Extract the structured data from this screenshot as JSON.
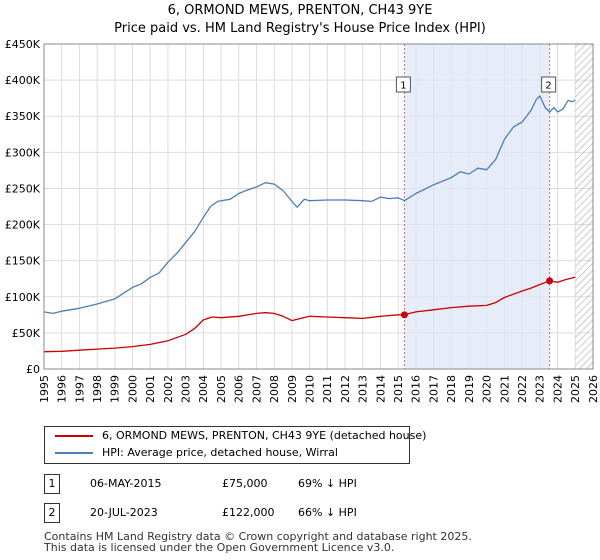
{
  "title": "6, ORMOND MEWS, PRENTON, CH43 9YE",
  "subtitle": "Price paid vs. HM Land Registry's House Price Index (HPI)",
  "chart_data": {
    "type": "line",
    "xlim": [
      1995,
      2026
    ],
    "ylim": [
      0,
      450000
    ],
    "x_ticks": [
      1995,
      1996,
      1997,
      1998,
      1999,
      2000,
      2001,
      2002,
      2003,
      2004,
      2005,
      2006,
      2007,
      2008,
      2009,
      2010,
      2011,
      2012,
      2013,
      2014,
      2015,
      2016,
      2017,
      2018,
      2019,
      2020,
      2021,
      2022,
      2023,
      2024,
      2025,
      2026
    ],
    "y_ticks": [
      {
        "value": 0,
        "label": "£0"
      },
      {
        "value": 50000,
        "label": "£50K"
      },
      {
        "value": 100000,
        "label": "£100K"
      },
      {
        "value": 150000,
        "label": "£150K"
      },
      {
        "value": 200000,
        "label": "£200K"
      },
      {
        "value": 250000,
        "label": "£250K"
      },
      {
        "value": 300000,
        "label": "£300K"
      },
      {
        "value": 350000,
        "label": "£350K"
      },
      {
        "value": 400000,
        "label": "£400K"
      },
      {
        "value": 450000,
        "label": "£450K"
      }
    ],
    "shaded_region": {
      "from": 2015.35,
      "to": 2023.55
    },
    "future_hatch_from": 2025.0,
    "series": [
      {
        "name": "6, ORMOND MEWS, PRENTON, CH43 9YE (detached house)",
        "color": "#cc0000",
        "x": [
          1995.0,
          1996.0,
          1997.0,
          1998.0,
          1999.0,
          2000.0,
          2001.0,
          2002.0,
          2003.0,
          2003.5,
          2004.0,
          2004.5,
          2005.0,
          2006.0,
          2007.0,
          2007.5,
          2008.0,
          2008.5,
          2009.0,
          2009.5,
          2010.0,
          2011.0,
          2012.0,
          2013.0,
          2014.0,
          2015.0,
          2015.35,
          2016.0,
          2017.0,
          2018.0,
          2019.0,
          2020.0,
          2020.5,
          2021.0,
          2022.0,
          2022.5,
          2023.0,
          2023.55,
          2024.0,
          2024.5,
          2025.0
        ],
        "y": [
          24000,
          24500,
          26000,
          27500,
          29000,
          31000,
          34000,
          39000,
          48000,
          56000,
          68000,
          72000,
          71000,
          73000,
          77000,
          78000,
          77000,
          73000,
          67000,
          70000,
          73000,
          72000,
          71000,
          70000,
          73000,
          75000,
          75000,
          79000,
          82000,
          85000,
          87000,
          88000,
          92000,
          99000,
          108000,
          112000,
          117000,
          122000,
          120000,
          124000,
          127000
        ]
      },
      {
        "name": "HPI: Average price, detached house, Wirral",
        "color": "#4a7ebb",
        "x": [
          1995.0,
          1995.5,
          1996.0,
          1997.0,
          1998.0,
          1999.0,
          2000.0,
          2000.5,
          2001.0,
          2001.5,
          2002.0,
          2002.5,
          2003.0,
          2003.5,
          2004.0,
          2004.4,
          2004.8,
          2005.5,
          2006.0,
          2006.5,
          2007.0,
          2007.5,
          2008.0,
          2008.5,
          2009.0,
          2009.3,
          2009.7,
          2010.0,
          2011.0,
          2012.0,
          2013.0,
          2013.5,
          2014.0,
          2014.5,
          2015.0,
          2015.35,
          2016.0,
          2017.0,
          2018.0,
          2018.5,
          2019.0,
          2019.5,
          2020.0,
          2020.5,
          2021.0,
          2021.5,
          2022.0,
          2022.5,
          2022.8,
          2023.0,
          2023.3,
          2023.55,
          2023.8,
          2024.0,
          2024.3,
          2024.6,
          2024.8,
          2025.0
        ],
        "y": [
          79000,
          77000,
          80000,
          84000,
          90000,
          97000,
          113000,
          118000,
          127000,
          133000,
          148000,
          160000,
          175000,
          190000,
          210000,
          225000,
          232000,
          235000,
          243000,
          248000,
          252000,
          258000,
          256000,
          247000,
          232000,
          224000,
          235000,
          233000,
          234000,
          234000,
          233000,
          232000,
          238000,
          236000,
          237000,
          233000,
          243000,
          255000,
          265000,
          273000,
          270000,
          278000,
          276000,
          290000,
          318000,
          335000,
          342000,
          358000,
          373000,
          378000,
          362000,
          356000,
          362000,
          356000,
          360000,
          372000,
          370000,
          372000
        ]
      }
    ],
    "annotations": [
      {
        "label": "1",
        "x": 2015.35,
        "y": 75000
      },
      {
        "label": "2",
        "x": 2023.55,
        "y": 122000
      }
    ]
  },
  "legend": [
    {
      "label": "6, ORMOND MEWS, PRENTON, CH43 9YE (detached house)",
      "color": "#cc0000"
    },
    {
      "label": "HPI: Average price, detached house, Wirral",
      "color": "#4a7ebb"
    }
  ],
  "sales": [
    {
      "num": "1",
      "date": "06-MAY-2015",
      "price": "£75,000",
      "hpi": "69% ↓ HPI"
    },
    {
      "num": "2",
      "date": "20-JUL-2023",
      "price": "£122,000",
      "hpi": "66% ↓ HPI"
    }
  ],
  "footer": {
    "line1": "Contains HM Land Registry data © Crown copyright and database right 2025.",
    "line2": "This data is licensed under the Open Government Licence v3.0."
  }
}
